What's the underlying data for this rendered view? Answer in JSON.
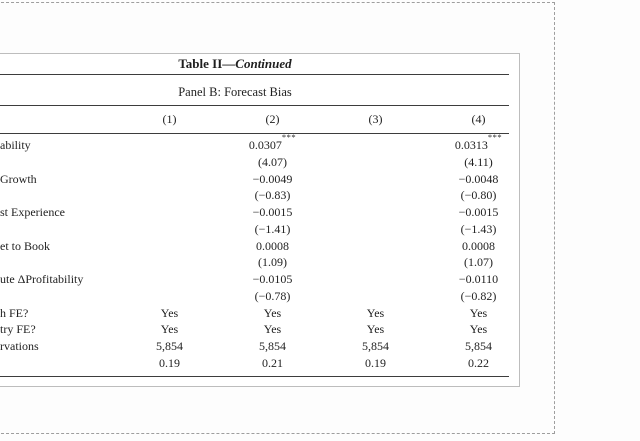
{
  "page": {
    "background_color": "#fdfdfd",
    "crop_border_color": "#9e9e9e",
    "table_box_border_color": "#bdbdbd",
    "rule_color": "#3d3d3d"
  },
  "table": {
    "title": {
      "prefix": "Table II",
      "separator": "—",
      "suffix": "Continued"
    },
    "panel_title": "Panel B: Forecast Bias",
    "column_headers": [
      "(1)",
      "(2)",
      "(3)",
      "(4)"
    ],
    "rows": [
      {
        "label": "ability",
        "cells": [
          {
            "v": ""
          },
          {
            "v": "0.0307",
            "sup": "***"
          },
          {
            "v": ""
          },
          {
            "v": "0.0313",
            "sup": "***"
          }
        ]
      },
      {
        "label": "",
        "cells": [
          {
            "v": ""
          },
          {
            "v": "(4.07)"
          },
          {
            "v": ""
          },
          {
            "v": "(4.11)"
          }
        ]
      },
      {
        "label": "Growth",
        "cells": [
          {
            "v": ""
          },
          {
            "v": "−0.0049"
          },
          {
            "v": ""
          },
          {
            "v": "−0.0048"
          }
        ]
      },
      {
        "label": "",
        "cells": [
          {
            "v": ""
          },
          {
            "v": "(−0.83)"
          },
          {
            "v": ""
          },
          {
            "v": "(−0.80)"
          }
        ]
      },
      {
        "label": "st Experience",
        "cells": [
          {
            "v": ""
          },
          {
            "v": "−0.0015"
          },
          {
            "v": ""
          },
          {
            "v": "−0.0015"
          }
        ]
      },
      {
        "label": "",
        "cells": [
          {
            "v": ""
          },
          {
            "v": "(−1.41)"
          },
          {
            "v": ""
          },
          {
            "v": "(−1.43)"
          }
        ]
      },
      {
        "label": "et to Book",
        "cells": [
          {
            "v": ""
          },
          {
            "v": "0.0008"
          },
          {
            "v": ""
          },
          {
            "v": "0.0008"
          }
        ]
      },
      {
        "label": "",
        "cells": [
          {
            "v": ""
          },
          {
            "v": "(1.09)"
          },
          {
            "v": ""
          },
          {
            "v": "(1.07)"
          }
        ]
      },
      {
        "label": "ute ΔProfitability",
        "cells": [
          {
            "v": ""
          },
          {
            "v": "−0.0105"
          },
          {
            "v": ""
          },
          {
            "v": "−0.0110"
          }
        ]
      },
      {
        "label": "",
        "cells": [
          {
            "v": ""
          },
          {
            "v": "(−0.78)"
          },
          {
            "v": ""
          },
          {
            "v": "(−0.82)"
          }
        ]
      },
      {
        "label": "h FE?",
        "cells": [
          {
            "v": "Yes"
          },
          {
            "v": "Yes"
          },
          {
            "v": "Yes"
          },
          {
            "v": "Yes"
          }
        ]
      },
      {
        "label": "try FE?",
        "cells": [
          {
            "v": "Yes"
          },
          {
            "v": "Yes"
          },
          {
            "v": "Yes"
          },
          {
            "v": "Yes"
          }
        ]
      },
      {
        "label": "rvations",
        "cells": [
          {
            "v": "5,854"
          },
          {
            "v": "5,854"
          },
          {
            "v": "5,854"
          },
          {
            "v": "5,854"
          }
        ]
      },
      {
        "label": "",
        "cells": [
          {
            "v": "0.19"
          },
          {
            "v": "0.21"
          },
          {
            "v": "0.19"
          },
          {
            "v": "0.22"
          }
        ]
      }
    ]
  }
}
